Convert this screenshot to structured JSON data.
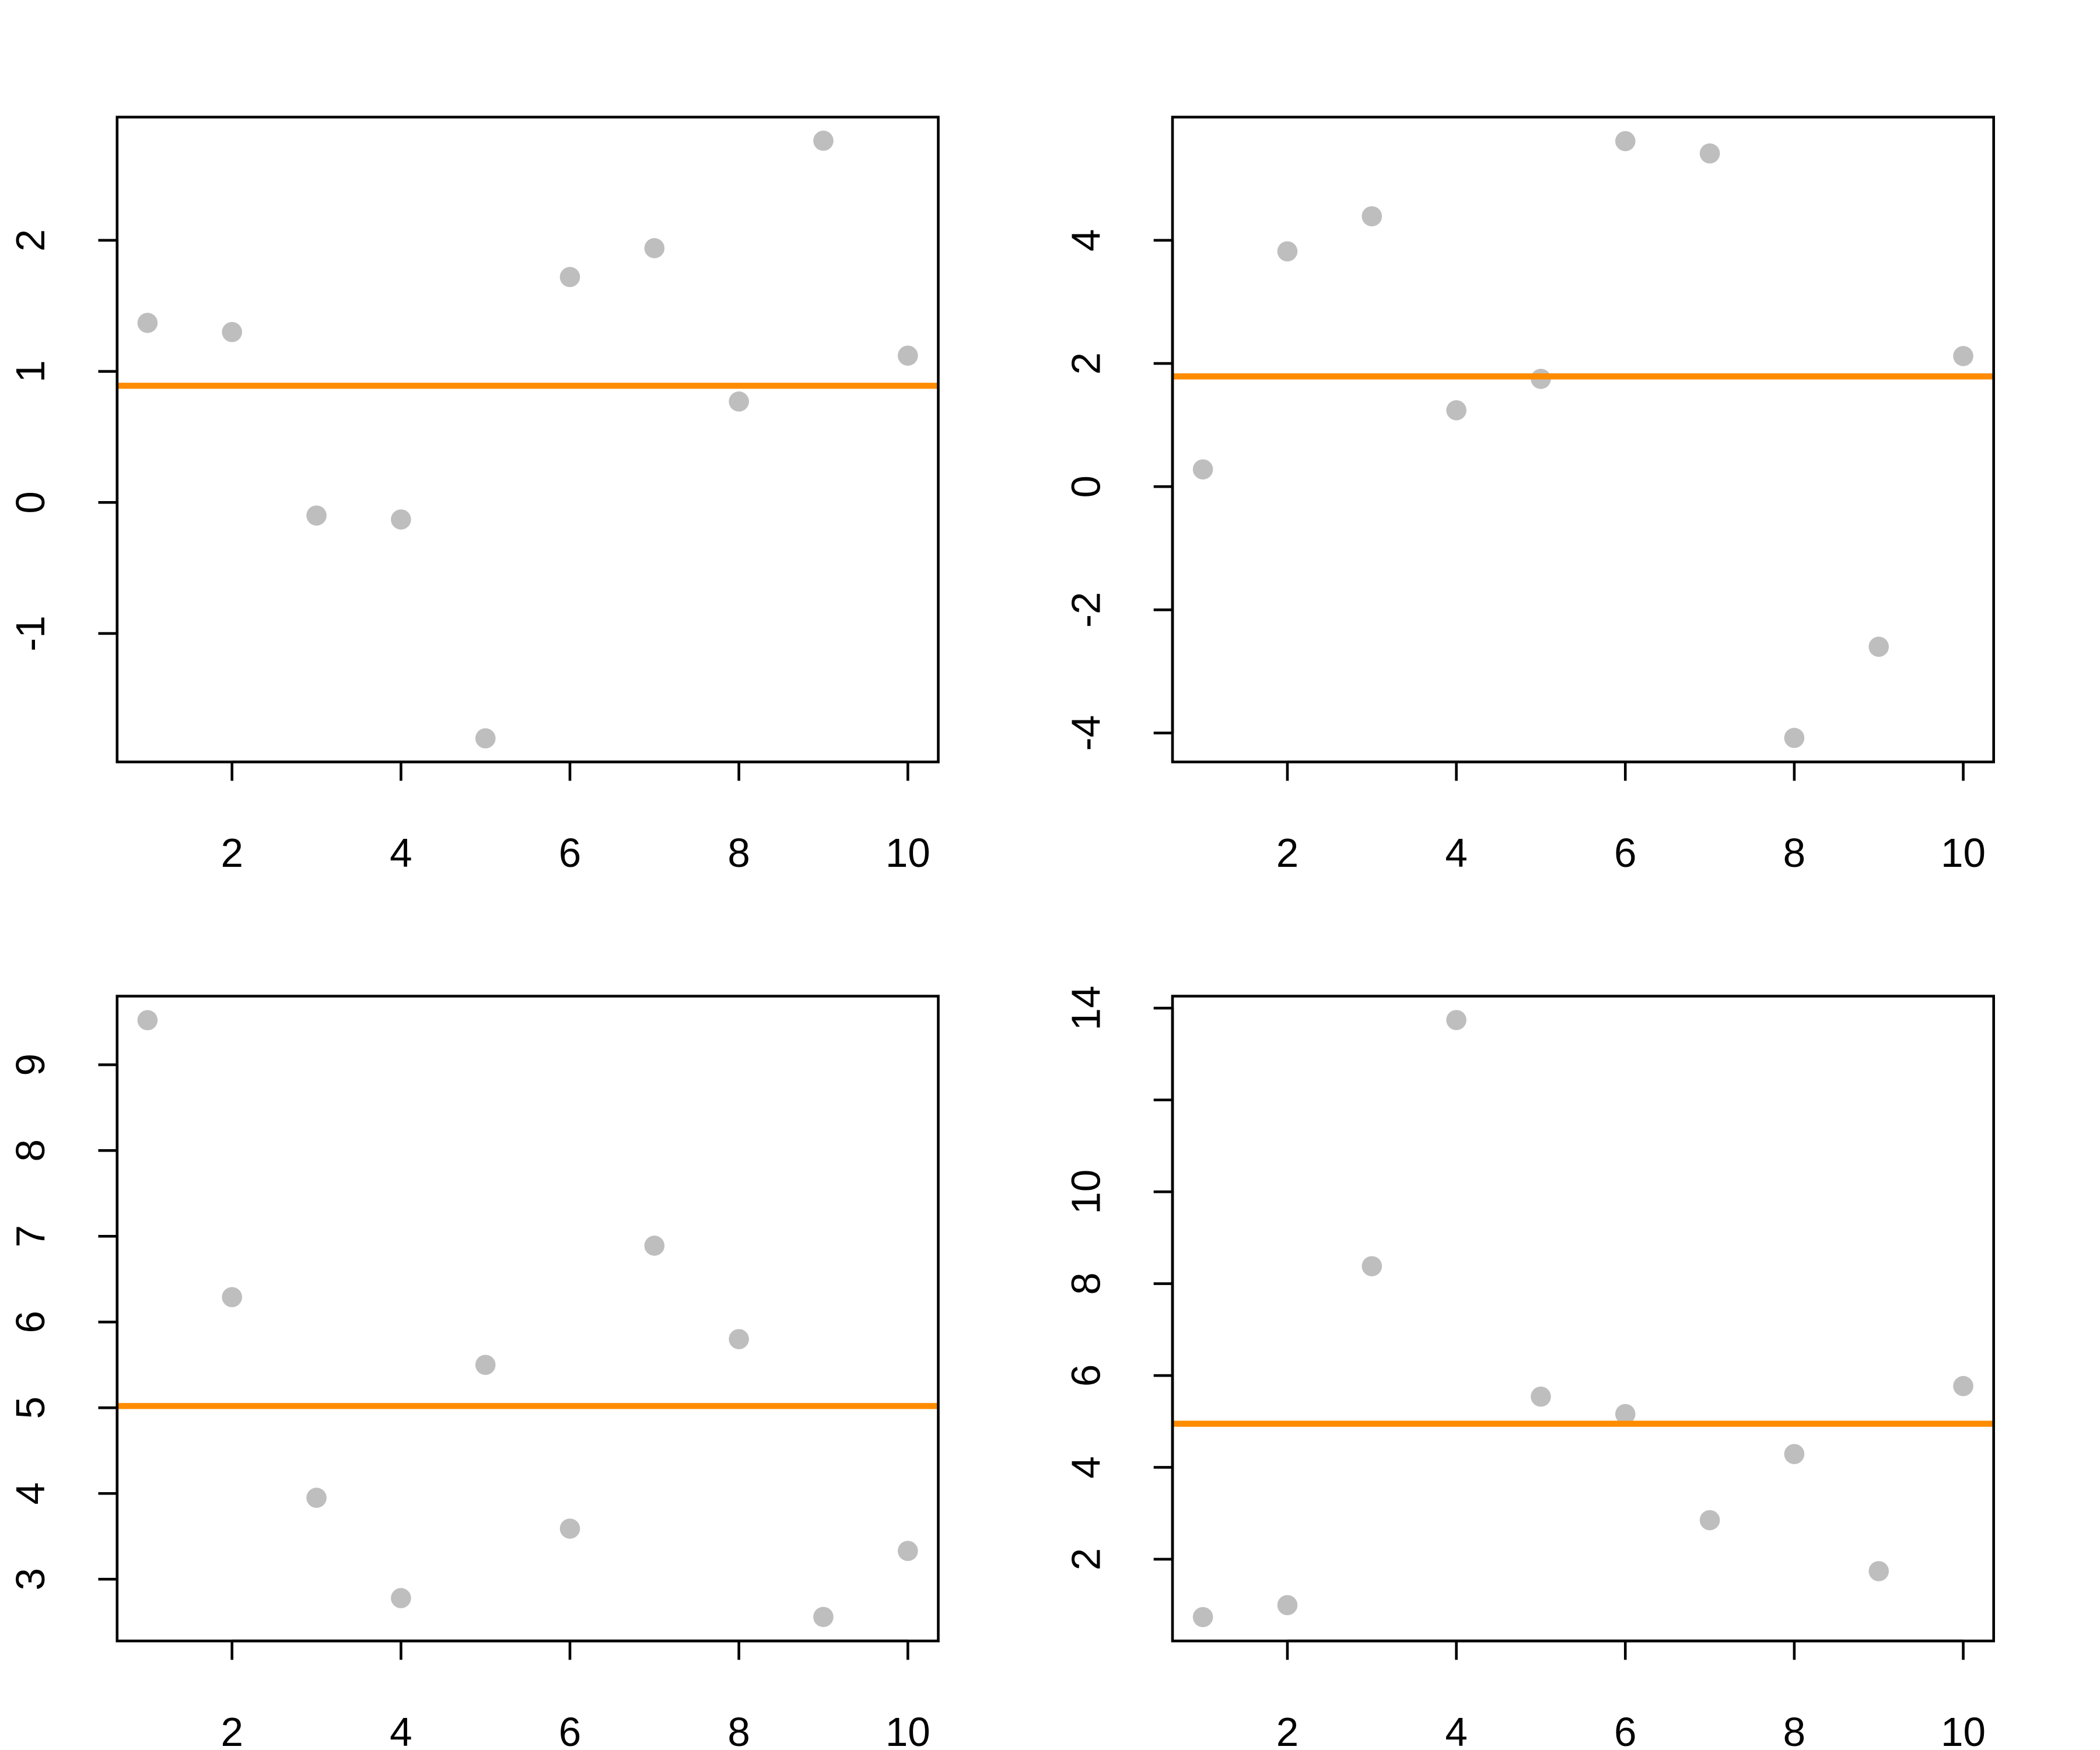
{
  "chart_data": [
    {
      "type": "scatter",
      "x": [
        1,
        2,
        3,
        4,
        5,
        6,
        7,
        8,
        9,
        10
      ],
      "y": [
        1.37,
        1.3,
        -0.1,
        -0.13,
        -1.8,
        1.72,
        1.94,
        0.77,
        2.76,
        1.12
      ],
      "hline": 0.89,
      "xlim": [
        0.64,
        10.36
      ],
      "ylim": [
        -1.98,
        2.94
      ],
      "xticks": [
        2,
        4,
        6,
        8,
        10
      ],
      "xtick_labels": [
        "2",
        "4",
        "6",
        "8",
        "10"
      ],
      "yticks": [
        -1,
        0,
        1,
        2
      ],
      "ytick_labels": [
        "-1",
        "0",
        "1",
        "2"
      ],
      "title": "",
      "xlabel": "",
      "ylabel": ""
    },
    {
      "type": "scatter",
      "x": [
        1,
        2,
        3,
        4,
        5,
        6,
        7,
        8,
        9,
        10
      ],
      "y": [
        0.28,
        3.82,
        4.39,
        1.24,
        1.75,
        5.61,
        5.41,
        -4.08,
        -2.6,
        2.12
      ],
      "hline": 1.79,
      "xlim": [
        0.64,
        10.36
      ],
      "ylim": [
        -4.47,
        6.0
      ],
      "xticks": [
        2,
        4,
        6,
        8,
        10
      ],
      "xtick_labels": [
        "2",
        "4",
        "6",
        "8",
        "10"
      ],
      "yticks": [
        -4,
        -2,
        0,
        2,
        4
      ],
      "ytick_labels": [
        "-4",
        "-2",
        "0",
        "2",
        "4"
      ],
      "title": "",
      "xlabel": "",
      "ylabel": ""
    },
    {
      "type": "scatter",
      "x": [
        1,
        2,
        3,
        4,
        5,
        6,
        7,
        8,
        9,
        10
      ],
      "y": [
        9.52,
        6.29,
        3.95,
        2.78,
        5.5,
        3.59,
        6.89,
        5.8,
        2.56,
        3.33
      ],
      "hline": 5.02,
      "xlim": [
        0.64,
        10.36
      ],
      "ylim": [
        2.28,
        9.8
      ],
      "xticks": [
        2,
        4,
        6,
        8,
        10
      ],
      "xtick_labels": [
        "2",
        "4",
        "6",
        "8",
        "10"
      ],
      "yticks": [
        3,
        4,
        5,
        6,
        7,
        8,
        9
      ],
      "ytick_labels": [
        "3",
        "4",
        "5",
        "6",
        "7",
        "8",
        "9"
      ],
      "title": "",
      "xlabel": "",
      "ylabel": ""
    },
    {
      "type": "scatter",
      "x": [
        1,
        2,
        3,
        4,
        5,
        6,
        7,
        8,
        9,
        10
      ],
      "y": [
        0.74,
        1.0,
        8.38,
        13.74,
        5.54,
        5.16,
        2.85,
        4.29,
        1.74,
        5.77
      ],
      "hline": 4.95,
      "xlim": [
        0.64,
        10.36
      ],
      "ylim": [
        0.22,
        14.26
      ],
      "xticks": [
        2,
        4,
        6,
        8,
        10
      ],
      "xtick_labels": [
        "2",
        "4",
        "6",
        "8",
        "10"
      ],
      "yticks": [
        2,
        4,
        6,
        8,
        10,
        12,
        14
      ],
      "ytick_labels": [
        "2",
        "4",
        "6",
        "8",
        "10",
        "",
        "14"
      ],
      "title": "",
      "xlabel": "",
      "ylabel": ""
    }
  ],
  "colors": {
    "points": "#bebebe",
    "hline": "#ff8c00",
    "axes": "#000000"
  }
}
